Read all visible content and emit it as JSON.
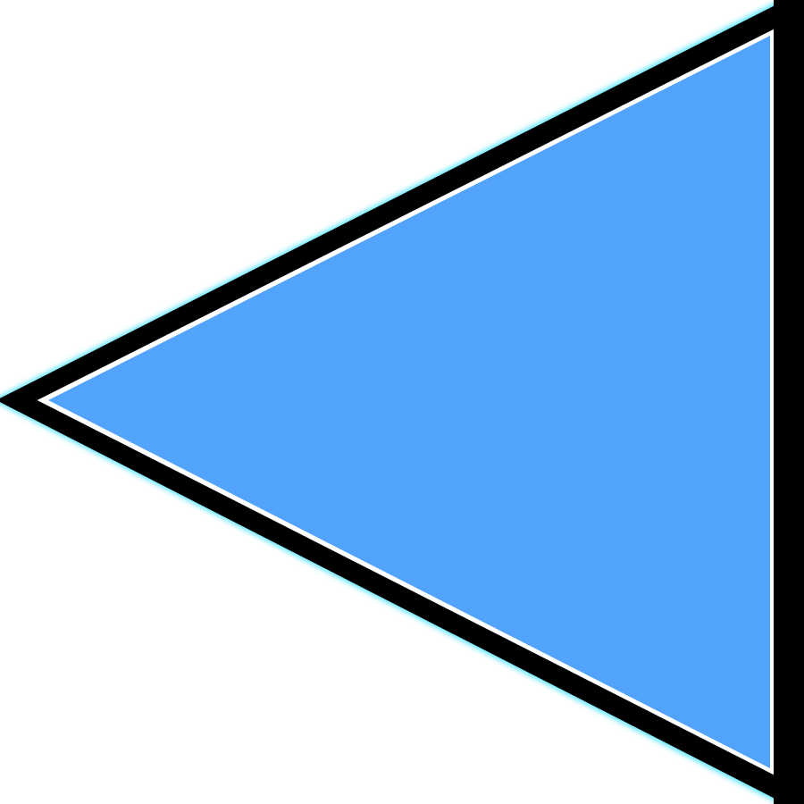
{
  "icon": {
    "name": "triangle-left-icon",
    "direction": "left",
    "colors": {
      "background": "#ffffff",
      "fill": "#52a3fb",
      "outline": "#000000",
      "inner_edge": "#ffffff",
      "glow": "#66e8ff"
    }
  }
}
